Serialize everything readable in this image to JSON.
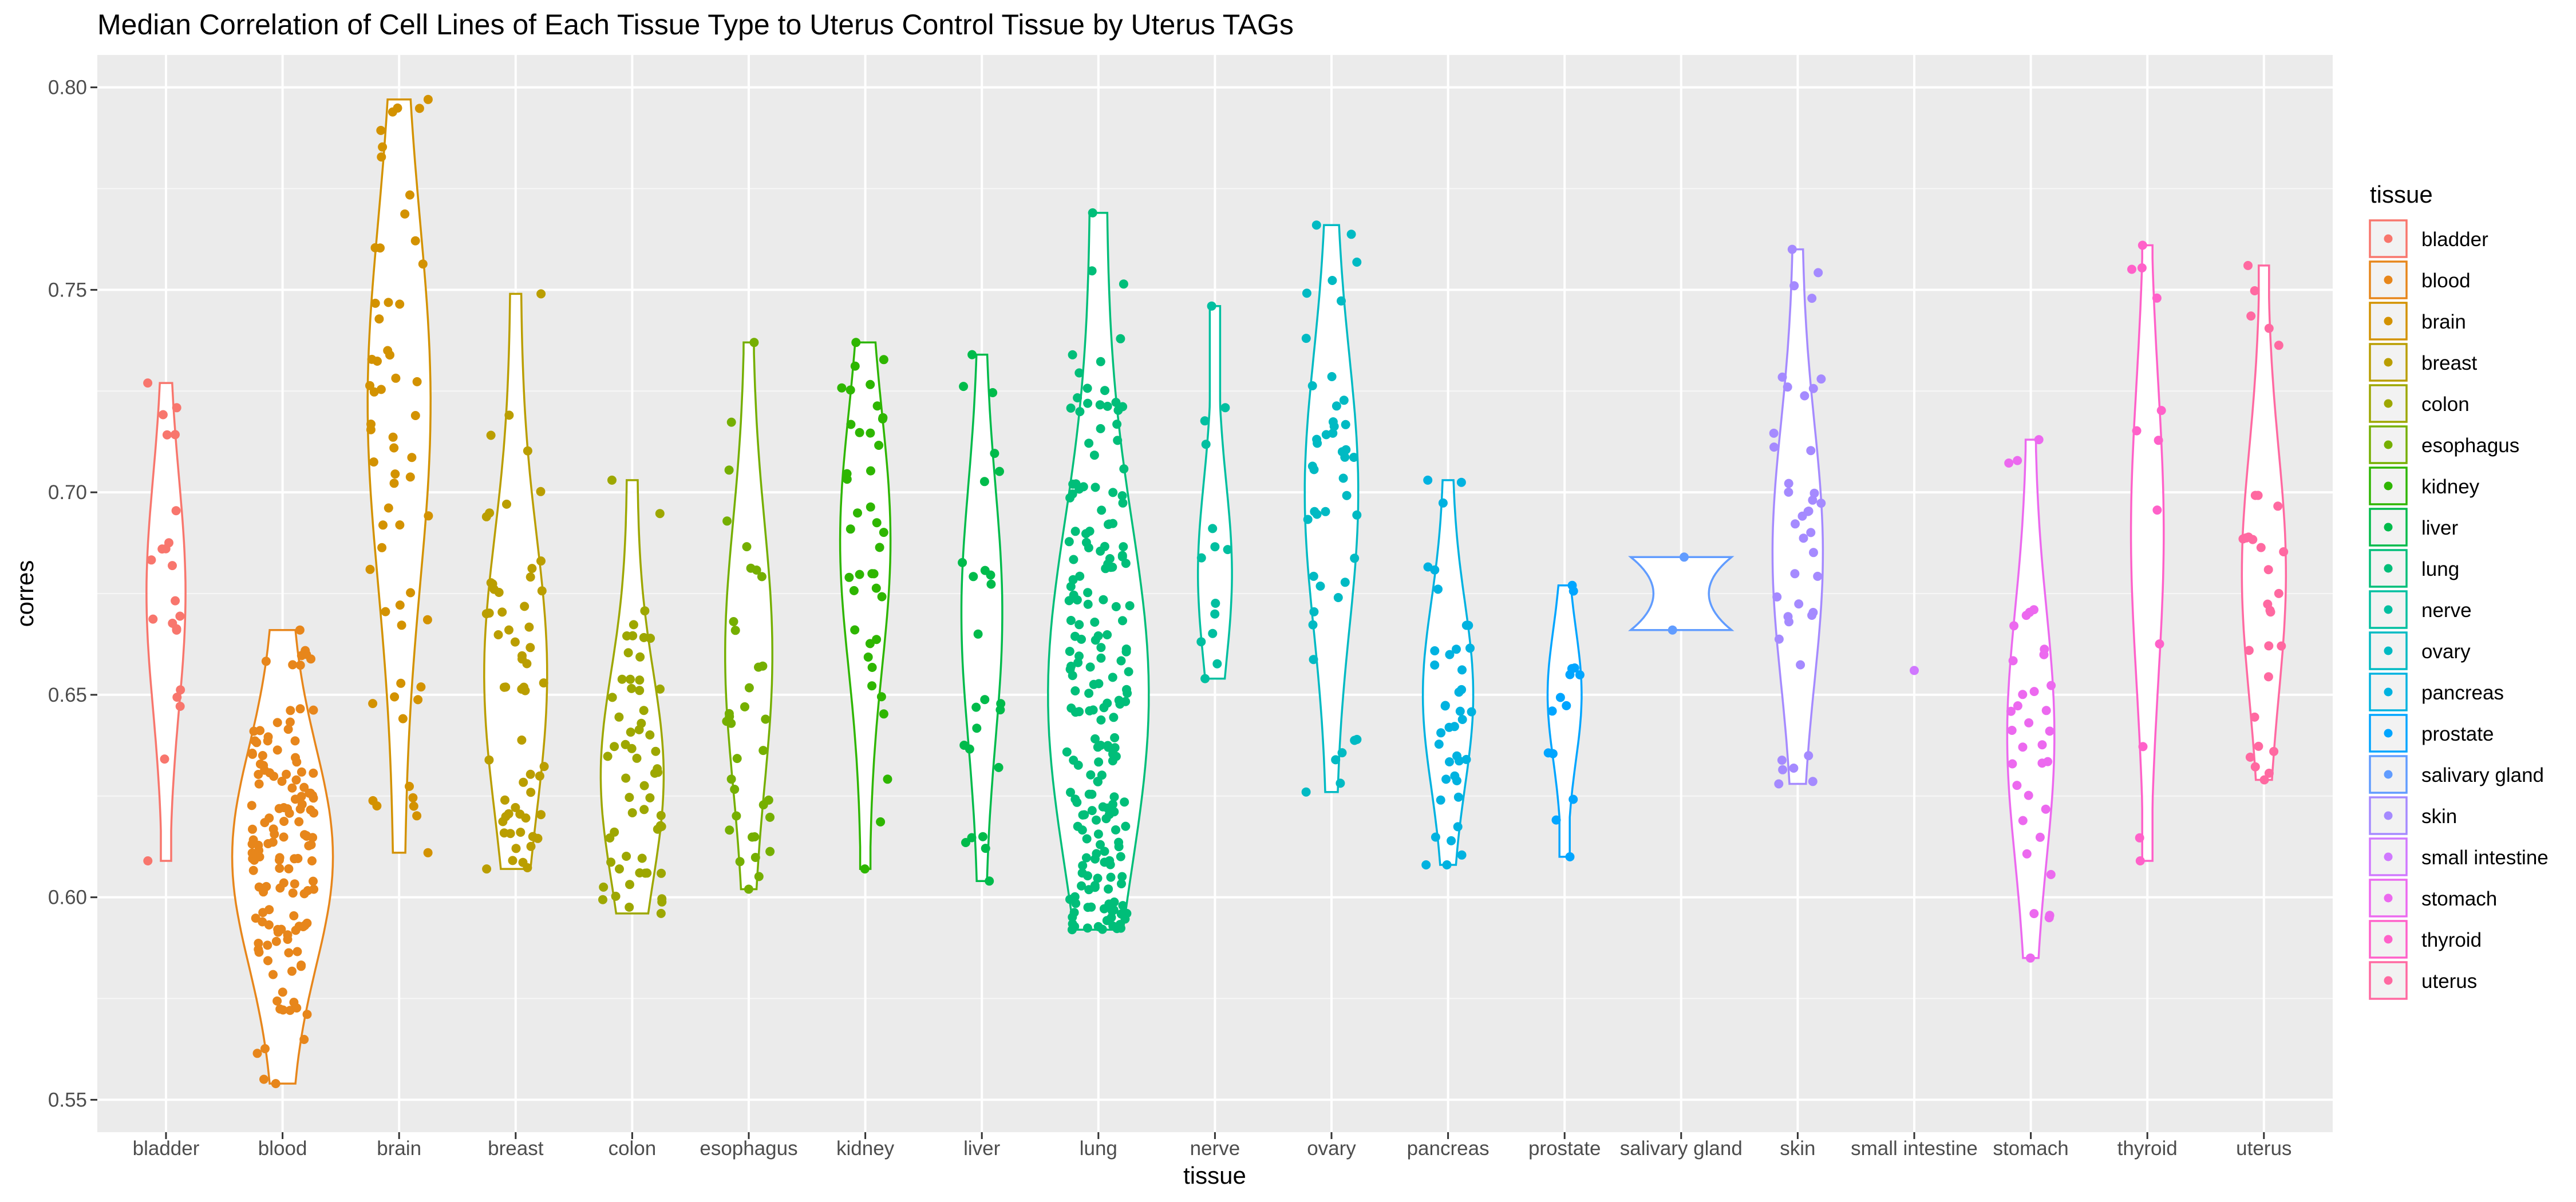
{
  "chart_data": {
    "type": "violin",
    "title": "Median Correlation of Cell Lines of Each Tissue Type to Uterus Control Tissue by Uterus TAGs",
    "xlabel": "tissue",
    "ylabel": "corres",
    "ylim": [
      0.542,
      0.808
    ],
    "y_ticks": [
      0.55,
      0.6,
      0.65,
      0.7,
      0.75,
      0.8
    ],
    "y_tick_labels": [
      "0.55",
      "0.60",
      "0.65",
      "0.70",
      "0.75",
      "0.80"
    ],
    "grid": true,
    "legend": {
      "title": "tissue",
      "position": "right"
    },
    "categories": [
      {
        "name": "bladder",
        "color": "#F8766D",
        "min": 0.609,
        "max": 0.727,
        "n": 22,
        "peak": 0.675
      },
      {
        "name": "blood",
        "color": "#E7861B",
        "min": 0.554,
        "max": 0.666,
        "n": 140,
        "peak": 0.61
      },
      {
        "name": "brain",
        "color": "#D39200",
        "min": 0.611,
        "max": 0.797,
        "n": 60,
        "peak": 0.722
      },
      {
        "name": "breast",
        "color": "#BA9E00",
        "min": 0.607,
        "max": 0.749,
        "n": 60,
        "peak": 0.655
      },
      {
        "name": "colon",
        "color": "#9DA700",
        "min": 0.596,
        "max": 0.703,
        "n": 60,
        "peak": 0.63
      },
      {
        "name": "esophagus",
        "color": "#75AF00",
        "min": 0.602,
        "max": 0.737,
        "n": 35,
        "peak": 0.66
      },
      {
        "name": "kidney",
        "color": "#2EB600",
        "min": 0.607,
        "max": 0.737,
        "n": 40,
        "peak": 0.688
      },
      {
        "name": "liver",
        "color": "#00BB4B",
        "min": 0.604,
        "max": 0.734,
        "n": 25,
        "peak": 0.67
      },
      {
        "name": "lung",
        "color": "#00BE79",
        "min": 0.592,
        "max": 0.769,
        "n": 200,
        "peak": 0.65
      },
      {
        "name": "nerve",
        "color": "#00BFA0",
        "min": 0.654,
        "max": 0.746,
        "n": 14,
        "peak": 0.68
      },
      {
        "name": "ovary",
        "color": "#00BAC3",
        "min": 0.626,
        "max": 0.766,
        "n": 45,
        "peak": 0.7
      },
      {
        "name": "pancreas",
        "color": "#00B2E0",
        "min": 0.608,
        "max": 0.703,
        "n": 40,
        "peak": 0.65
      },
      {
        "name": "prostate",
        "color": "#00A5FF",
        "min": 0.61,
        "max": 0.677,
        "n": 14,
        "peak": 0.65
      },
      {
        "name": "salivary gland",
        "color": "#619CFF",
        "min": 0.666,
        "max": 0.684,
        "n": 2,
        "peak": 0.675
      },
      {
        "name": "skin",
        "color": "#A58AFF",
        "min": 0.628,
        "max": 0.76,
        "n": 40,
        "peak": 0.685
      },
      {
        "name": "small intestine",
        "color": "#D078FF",
        "min": 0.656,
        "max": 0.656,
        "n": 1,
        "peak": 0.656
      },
      {
        "name": "stomach",
        "color": "#EC69EF",
        "min": 0.585,
        "max": 0.713,
        "n": 35,
        "peak": 0.64
      },
      {
        "name": "thyroid",
        "color": "#FF61C9",
        "min": 0.609,
        "max": 0.761,
        "n": 12,
        "peak": 0.69
      },
      {
        "name": "uterus",
        "color": "#FF69A1",
        "min": 0.629,
        "max": 0.756,
        "n": 30,
        "peak": 0.68
      }
    ]
  }
}
